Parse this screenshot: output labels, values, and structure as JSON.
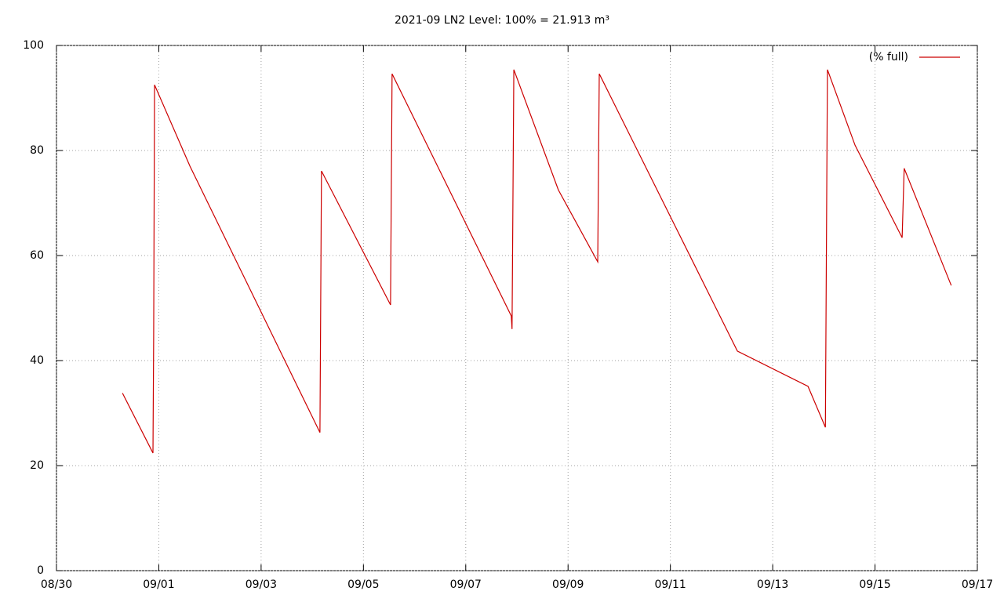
{
  "chart_data": {
    "type": "line",
    "title": "2021-09 LN2 Level: 100% = 21.913 m³",
    "x": [
      1.29,
      1.886,
      1.9,
      1.917,
      2.61,
      5.15,
      5.18,
      6.53,
      6.56,
      8.89,
      8.905,
      8.94,
      9.81,
      10.58,
      10.61,
      13.31,
      14.69,
      15.03,
      15.07,
      15.61,
      16.53,
      16.57,
      17.49
    ],
    "series": [
      {
        "name": "(% full)",
        "color": "#cc0000",
        "values": [
          33.8,
          22.4,
          45,
          92.5,
          77,
          26.3,
          76.1,
          50.6,
          94.6,
          48.5,
          46,
          95.4,
          72.5,
          58.8,
          94.6,
          41.8,
          35.1,
          27.3,
          95.4,
          81,
          63.4,
          76.6,
          54.3
        ]
      }
    ],
    "xlim": [
      0,
      18
    ],
    "xticks": [
      {
        "value": 0,
        "label": "08/30"
      },
      {
        "value": 2,
        "label": "09/01"
      },
      {
        "value": 4,
        "label": "09/03"
      },
      {
        "value": 6,
        "label": "09/05"
      },
      {
        "value": 8,
        "label": "09/07"
      },
      {
        "value": 10,
        "label": "09/09"
      },
      {
        "value": 12,
        "label": "09/11"
      },
      {
        "value": 14,
        "label": "09/13"
      },
      {
        "value": 16,
        "label": "09/15"
      },
      {
        "value": 18,
        "label": "09/17"
      }
    ],
    "ylim": [
      0,
      100
    ],
    "yticks": [
      0,
      20,
      40,
      60,
      80,
      100
    ],
    "grid": true,
    "legend": "top-right"
  }
}
